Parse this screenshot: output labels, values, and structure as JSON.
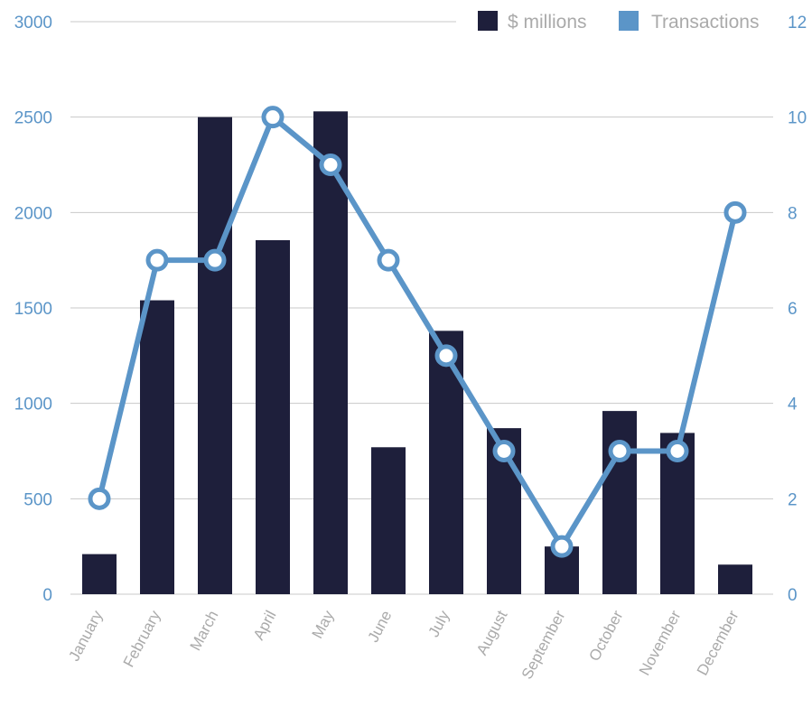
{
  "chart_data": {
    "type": "bar",
    "categories": [
      "January",
      "February",
      "March",
      "April",
      "May",
      "June",
      "July",
      "August",
      "September",
      "October",
      "November",
      "December"
    ],
    "series": [
      {
        "name": "$ millions",
        "type": "bar",
        "axis": "left",
        "color": "#1e1f3b",
        "values": [
          210,
          1540,
          2500,
          1855,
          2530,
          770,
          1380,
          870,
          250,
          960,
          845,
          155
        ]
      },
      {
        "name": "Transactions",
        "type": "line",
        "axis": "right",
        "color": "#5b95c8",
        "values": [
          2,
          7,
          7,
          10,
          9,
          7,
          5,
          3,
          1,
          3,
          3,
          8
        ]
      }
    ],
    "y_left": {
      "lim": [
        0,
        3000
      ],
      "ticks": [
        0,
        500,
        1000,
        1500,
        2000,
        2500,
        3000
      ],
      "tick_labels": [
        "0",
        "500",
        "1000",
        "1500",
        "2000",
        "2500",
        "3000"
      ]
    },
    "y_right": {
      "lim": [
        0,
        12
      ],
      "ticks": [
        0,
        2,
        4,
        6,
        8,
        10,
        12
      ],
      "tick_labels": [
        "0",
        "2",
        "4",
        "6",
        "8",
        "10",
        "12"
      ]
    },
    "legend": {
      "placement": "top-right",
      "entries": [
        "$ millions",
        "Transactions"
      ]
    },
    "grid": true,
    "title": "",
    "xlabel": "",
    "ylabel": "",
    "colors": {
      "bar": "#1e1f3b",
      "line": "#5b95c8",
      "grid": "#c8c8c8",
      "tick_text": "#5b95c8",
      "category_text": "#aaaaaa"
    }
  }
}
